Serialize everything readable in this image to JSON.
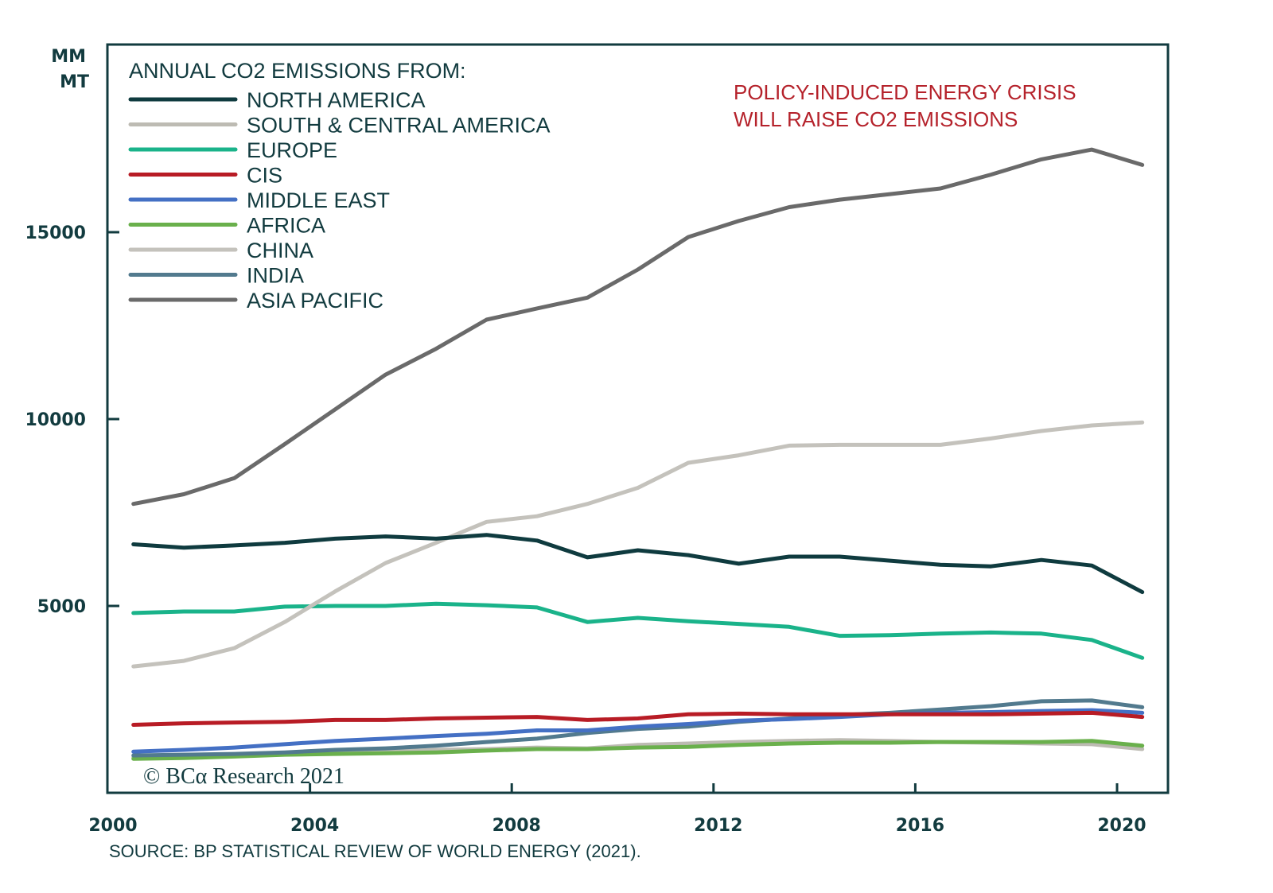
{
  "chart_data": {
    "type": "line",
    "ylabel": "MM MT",
    "ylabel_lines": [
      "MM",
      "MT"
    ],
    "xlabel": "",
    "ylim": [
      0,
      18500
    ],
    "xlim": [
      2000,
      2021
    ],
    "y_ticks": [
      5000,
      10000,
      15000
    ],
    "y_tick_labels": [
      "5000",
      "10000",
      "15000"
    ],
    "x_ticks": [
      2000,
      2004,
      2008,
      2012,
      2016,
      2020
    ],
    "x_tick_labels": [
      "2000",
      "2004",
      "2008",
      "2012",
      "2016",
      "2020"
    ],
    "grid": false,
    "legend_title": "ANNUAL CO2 EMISSIONS FROM:",
    "legend_position": "top-left",
    "annotation": [
      "POLICY-INDUCED ENERGY CRISIS",
      "WILL RAISE CO2 EMISSIONS"
    ],
    "source": "SOURCE: BP STATISTICAL REVIEW OF WORLD ENERGY (2021).",
    "copyright": "© BCα Research 2021",
    "x": [
      2000,
      2001,
      2002,
      2003,
      2004,
      2005,
      2006,
      2007,
      2008,
      2009,
      2010,
      2011,
      2012,
      2013,
      2014,
      2015,
      2016,
      2017,
      2018,
      2019,
      2020
    ],
    "series": [
      {
        "name": "NORTH AMERICA",
        "color": "#0f3b3f",
        "values": [
          6650,
          6560,
          6620,
          6690,
          6800,
          6860,
          6800,
          6900,
          6750,
          6300,
          6490,
          6360,
          6130,
          6320,
          6320,
          6210,
          6100,
          6060,
          6230,
          6080,
          5370
        ]
      },
      {
        "name": "SOUTH & CENTRAL AMERICA",
        "color": "#bdbbb3",
        "values": [
          950,
          970,
          1000,
          1040,
          1080,
          1100,
          1150,
          1170,
          1210,
          1190,
          1280,
          1320,
          1360,
          1390,
          1410,
          1390,
          1360,
          1340,
          1320,
          1300,
          1170
        ]
      },
      {
        "name": "EUROPE",
        "color": "#1ab38a",
        "values": [
          4810,
          4850,
          4850,
          4980,
          5000,
          5000,
          5060,
          5020,
          4960,
          4570,
          4680,
          4590,
          4520,
          4440,
          4200,
          4220,
          4260,
          4290,
          4260,
          4090,
          3610
        ]
      },
      {
        "name": "CIS",
        "color": "#b81c25",
        "values": [
          1820,
          1860,
          1880,
          1900,
          1950,
          1950,
          1990,
          2010,
          2030,
          1950,
          1990,
          2100,
          2120,
          2100,
          2100,
          2100,
          2100,
          2100,
          2120,
          2140,
          2030
        ]
      },
      {
        "name": "MIDDLE EAST",
        "color": "#4470c4",
        "values": [
          1100,
          1150,
          1210,
          1300,
          1390,
          1450,
          1520,
          1580,
          1670,
          1670,
          1770,
          1840,
          1930,
          1970,
          2030,
          2100,
          2140,
          2160,
          2190,
          2210,
          2140
        ]
      },
      {
        "name": "AFRICA",
        "color": "#6ab04c",
        "values": [
          910,
          930,
          970,
          1020,
          1040,
          1060,
          1080,
          1130,
          1170,
          1170,
          1210,
          1230,
          1280,
          1320,
          1340,
          1340,
          1360,
          1360,
          1360,
          1390,
          1260
        ]
      },
      {
        "name": "CHINA",
        "color": "#c4c2bc",
        "values": [
          3380,
          3530,
          3870,
          4570,
          5390,
          6150,
          6690,
          7250,
          7400,
          7730,
          8160,
          8830,
          9030,
          9290,
          9310,
          9310,
          9310,
          9480,
          9680,
          9830,
          9910
        ]
      },
      {
        "name": "INDIA",
        "color": "#527a8e",
        "values": [
          1000,
          1020,
          1040,
          1080,
          1150,
          1190,
          1260,
          1360,
          1450,
          1600,
          1710,
          1770,
          1900,
          1990,
          2080,
          2140,
          2230,
          2320,
          2450,
          2470,
          2290
        ]
      },
      {
        "name": "ASIA PACIFIC",
        "color": "#6a6a6a",
        "values": [
          7730,
          7990,
          8420,
          9330,
          10260,
          11190,
          11880,
          12660,
          12960,
          13250,
          14000,
          14870,
          15300,
          15670,
          15870,
          16020,
          16170,
          16540,
          16950,
          17210,
          16800
        ]
      }
    ],
    "draw_order": [
      "SOUTH & CENTRAL AMERICA",
      "AFRICA",
      "INDIA",
      "MIDDLE EAST",
      "CIS",
      "EUROPE",
      "CHINA",
      "NORTH AMERICA",
      "ASIA PACIFIC"
    ]
  },
  "colors": {
    "frame": "#123b3f",
    "text": "#123b3f",
    "annotation": "#b5222b"
  }
}
